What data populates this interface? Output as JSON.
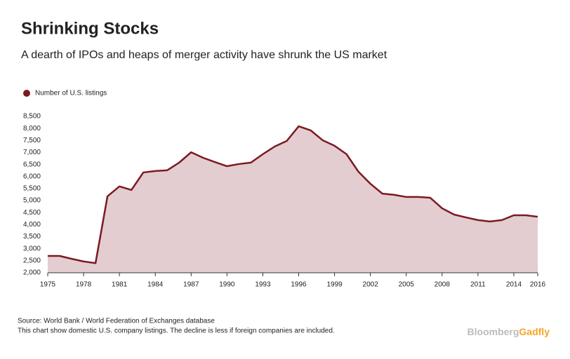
{
  "chart_data": {
    "type": "area",
    "title": "Shrinking Stocks",
    "subtitle": "A dearth of IPOs and heaps of merger activity have shrunk the US market",
    "x": [
      1975,
      1976,
      1977,
      1978,
      1979,
      1980,
      1981,
      1982,
      1983,
      1984,
      1985,
      1986,
      1987,
      1988,
      1989,
      1990,
      1991,
      1992,
      1993,
      1994,
      1995,
      1996,
      1997,
      1998,
      1999,
      2000,
      2001,
      2002,
      2003,
      2004,
      2005,
      2006,
      2007,
      2008,
      2009,
      2010,
      2011,
      2012,
      2013,
      2014,
      2015,
      2016
    ],
    "series": [
      {
        "name": "Number of U.S. listings",
        "color": "#7b1a22",
        "fill": "#e3cdd0",
        "values": [
          2700,
          2700,
          2580,
          2470,
          2400,
          5180,
          5590,
          5440,
          6170,
          6230,
          6260,
          6580,
          7010,
          6780,
          6600,
          6430,
          6520,
          6580,
          6930,
          7250,
          7480,
          8090,
          7920,
          7510,
          7280,
          6930,
          6200,
          5700,
          5290,
          5240,
          5150,
          5150,
          5120,
          4680,
          4420,
          4300,
          4190,
          4130,
          4190,
          4390,
          4390,
          4330
        ]
      }
    ],
    "xlim": [
      1975,
      2016
    ],
    "xticks": [
      1975,
      1978,
      1981,
      1984,
      1987,
      1990,
      1993,
      1996,
      1999,
      2002,
      2005,
      2008,
      2011,
      2014,
      2016
    ],
    "ylim": [
      2000,
      8500
    ],
    "yticks": [
      {
        "value": 2000,
        "label": "2,000"
      },
      {
        "value": 2500,
        "label": "2,500"
      },
      {
        "value": 3000,
        "label": "3,000"
      },
      {
        "value": 3500,
        "label": "3,500"
      },
      {
        "value": 4000,
        "label": "4,000"
      },
      {
        "value": 4500,
        "label": "4,500"
      },
      {
        "value": 5000,
        "label": "5,000"
      },
      {
        "value": 5500,
        "label": "5,500"
      },
      {
        "value": 6000,
        "label": "6,000"
      },
      {
        "value": 6500,
        "label": "6,500"
      },
      {
        "value": 7000,
        "label": "7,000"
      },
      {
        "value": 7500,
        "label": "7,500"
      },
      {
        "value": 8000,
        "label": "8,000"
      },
      {
        "value": 8500,
        "label": "8,500"
      }
    ],
    "grid": false,
    "source": "Source: World Bank / World Federation of Exchanges database",
    "note": "This chart show domestic U.S. company listings. The decline is less if foreign companies are included.",
    "logo": {
      "brand": "Bloomberg",
      "product": "Gadfly",
      "brand_color": "#bbbbbb",
      "product_color": "#f5a623"
    }
  }
}
